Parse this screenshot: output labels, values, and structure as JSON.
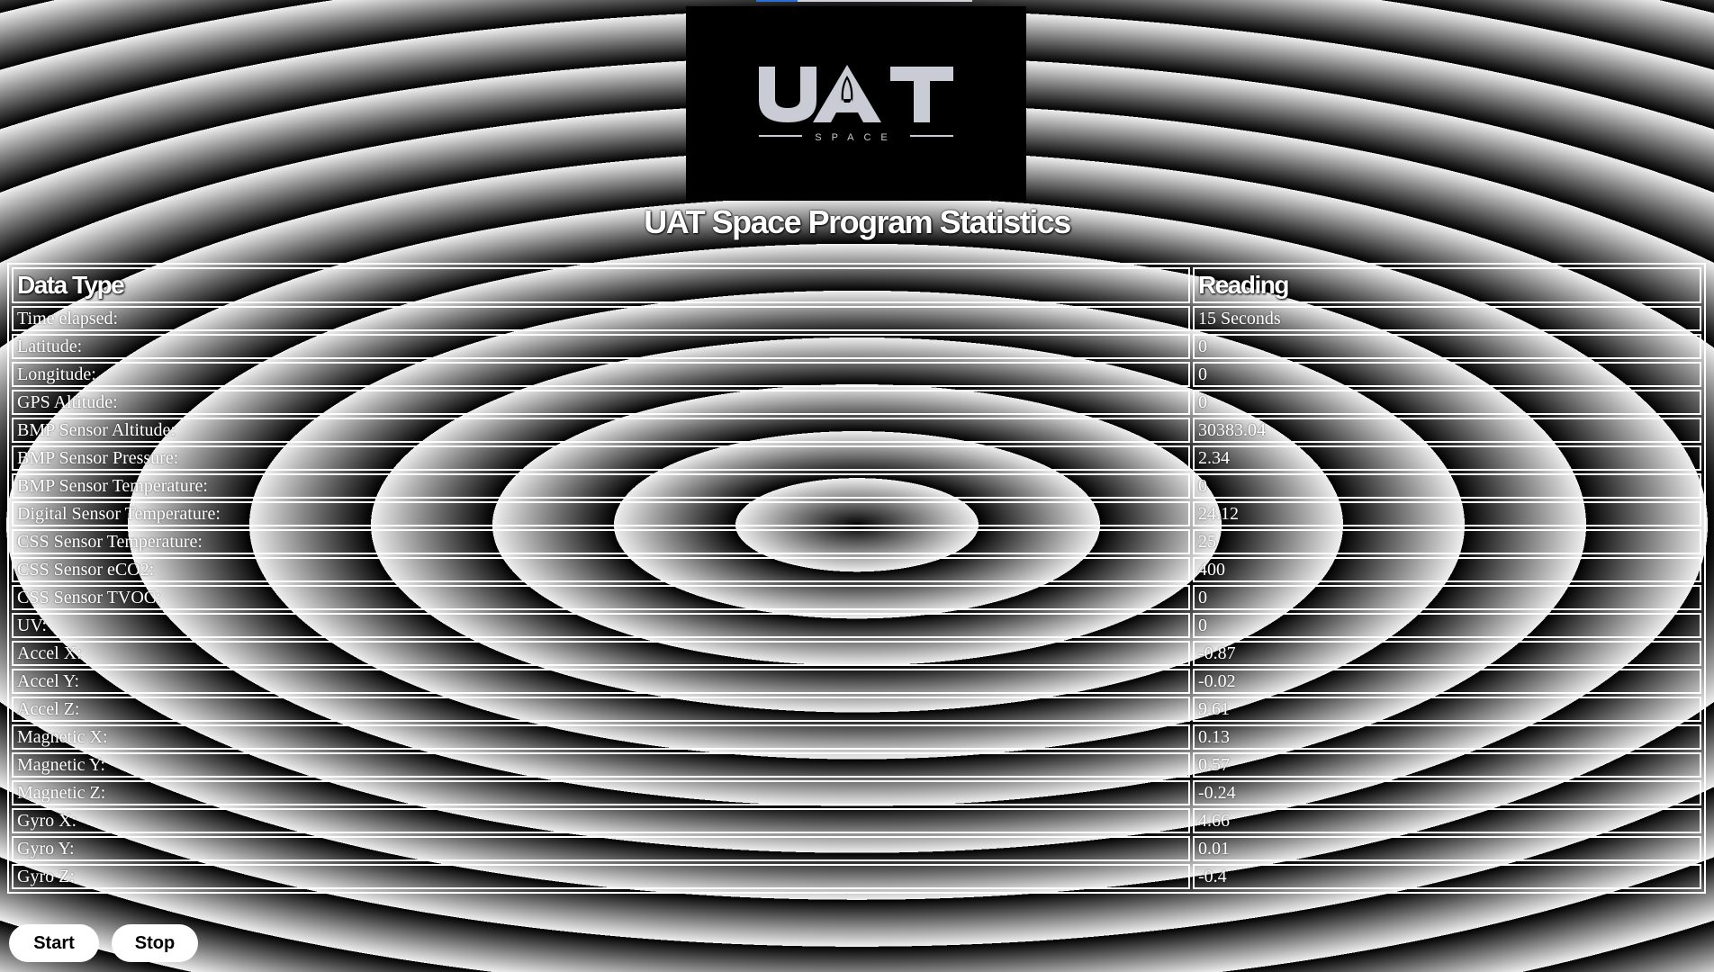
{
  "logo": {
    "wordmark": "UAT",
    "tagline": "SPACE"
  },
  "page_title": "UAT Space Program Statistics",
  "table": {
    "headers": [
      "Data Type",
      "Reading"
    ],
    "rows": [
      {
        "label": "Time elapsed:",
        "value": "15 Seconds"
      },
      {
        "label": "Latitude:",
        "value": "0"
      },
      {
        "label": "Longitude:",
        "value": "0"
      },
      {
        "label": "GPS Altitude:",
        "value": "0"
      },
      {
        "label": "BMP Sensor Altitude:",
        "value": "30383.04"
      },
      {
        "label": "BMP Sensor Pressure:",
        "value": "2.34"
      },
      {
        "label": "BMP Sensor Temperature:",
        "value": "0"
      },
      {
        "label": "Digital Sensor Temperature:",
        "value": "24.12"
      },
      {
        "label": "CSS Sensor Temperature:",
        "value": "25"
      },
      {
        "label": "CSS Sensor eCO2:",
        "value": "400"
      },
      {
        "label": "CSS Sensor TVOC:",
        "value": "0"
      },
      {
        "label": "UV:",
        "value": "0"
      },
      {
        "label": "Accel X:",
        "value": "-0.87"
      },
      {
        "label": "Accel Y:",
        "value": "-0.02"
      },
      {
        "label": "Accel Z:",
        "value": "9.61"
      },
      {
        "label": "Magnetic X:",
        "value": "0.13"
      },
      {
        "label": "Magnetic Y:",
        "value": "0.57"
      },
      {
        "label": "Magnetic Z:",
        "value": "-0.24"
      },
      {
        "label": "Gyro X:",
        "value": "4.66"
      },
      {
        "label": "Gyro Y:",
        "value": "0.01"
      },
      {
        "label": "Gyro Z:",
        "value": "-0.4"
      }
    ]
  },
  "controls": {
    "start_label": "Start",
    "stop_label": "Stop"
  },
  "colors": {
    "background_ring_dark": "#000000",
    "background_ring_light": "#efefef",
    "text": "#ffffff",
    "logo_text": "#c9ccd4"
  }
}
